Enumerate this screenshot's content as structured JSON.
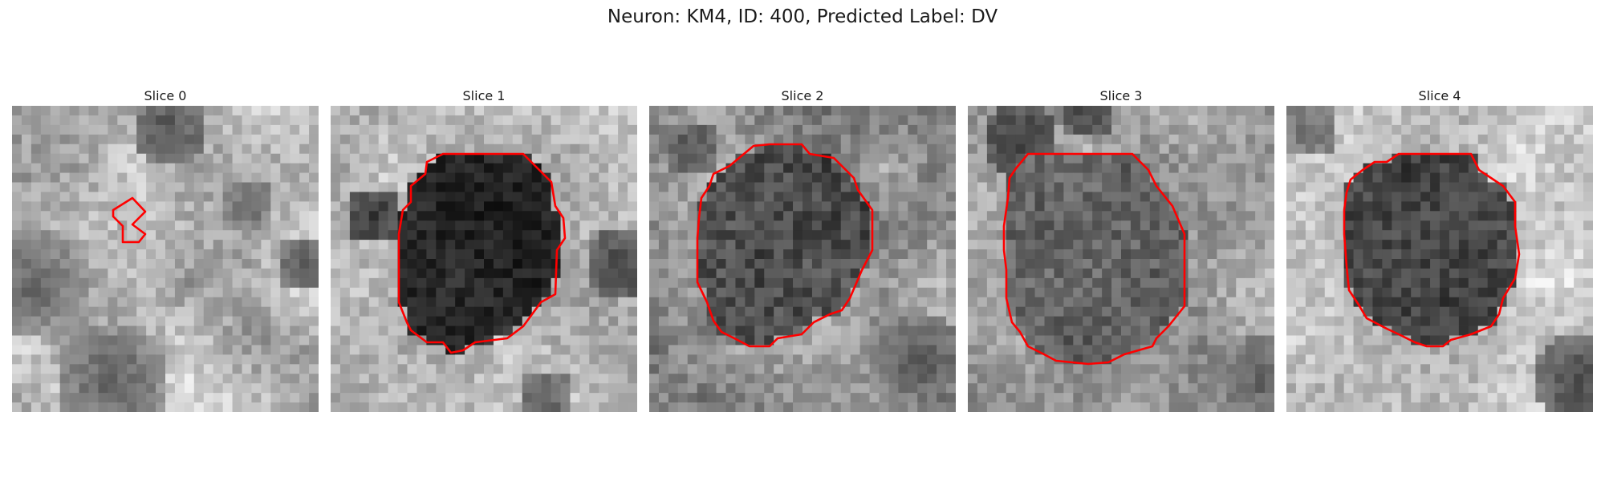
{
  "figure": {
    "title": "Neuron: KM4, ID: 400, Predicted Label: DV",
    "outline_color": "#ff0000"
  },
  "slices": [
    {
      "title": "Slice 0"
    },
    {
      "title": "Slice 1"
    },
    {
      "title": "Slice 2"
    },
    {
      "title": "Slice 3"
    },
    {
      "title": "Slice 4"
    }
  ]
}
